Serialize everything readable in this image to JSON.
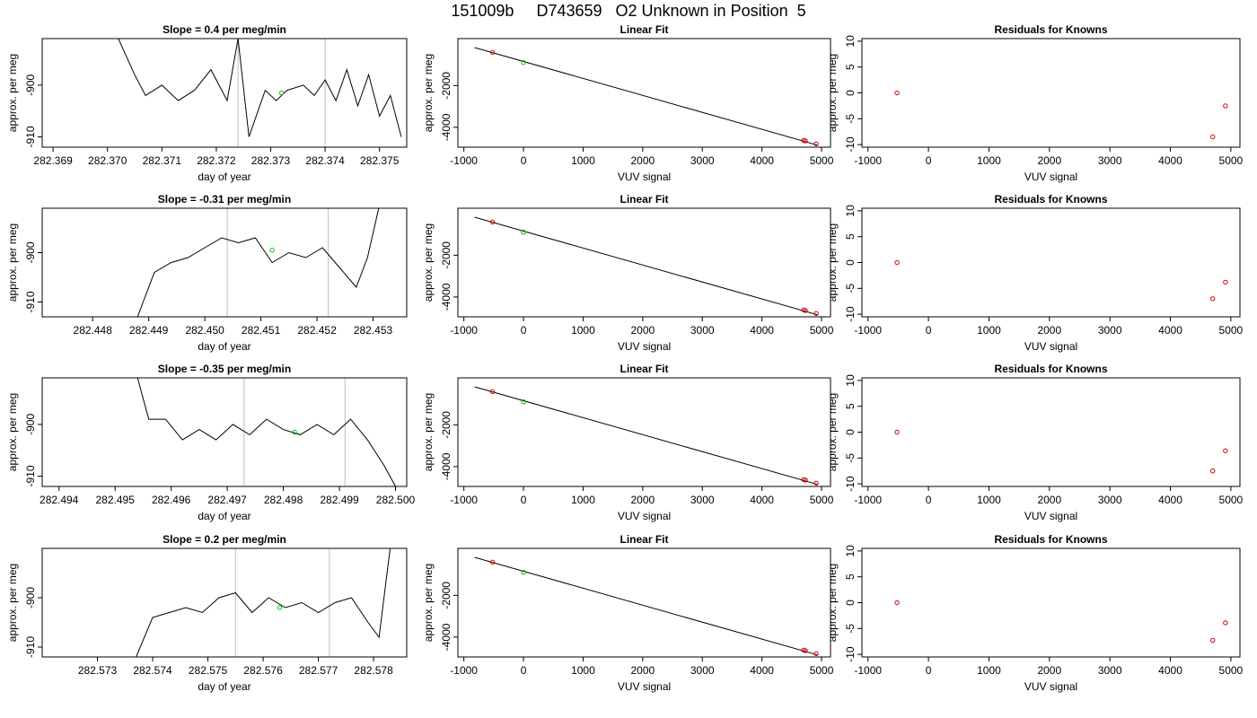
{
  "figure": {
    "title": "151009b     D743659   O2 Unknown in Position  5"
  },
  "colors": {
    "axes": "#000000",
    "trace": "#000000",
    "reference_line": "#c8c8c8",
    "unknown_marker": "#00c000",
    "known_marker": "#d00000"
  },
  "chart_data": [
    {
      "type": "line",
      "row": 0,
      "col": 0,
      "title": "Slope =  0.4  per meg/min",
      "xlabel": "day of year",
      "ylabel": "approx. per meg",
      "xlim": [
        282.3688,
        282.3755
      ],
      "ylim": [
        -912,
        -891
      ],
      "xticks": [
        282.369,
        282.37,
        282.371,
        282.372,
        282.373,
        282.374,
        282.375
      ],
      "xtick_labels": [
        "282.369",
        "282.370",
        "282.371",
        "282.372",
        "282.373",
        "282.374",
        "282.375"
      ],
      "yticks": [
        -900,
        -910
      ],
      "ytick_labels": [
        "-900",
        "-910"
      ],
      "vlines": [
        282.3724,
        282.374
      ],
      "trace_x": [
        282.3702,
        282.3705,
        282.3707,
        282.371,
        282.3713,
        282.3716,
        282.3719,
        282.3722,
        282.3724,
        282.3726,
        282.3729,
        282.3731,
        282.3733,
        282.3736,
        282.3738,
        282.374,
        282.3742,
        282.3744,
        282.3746,
        282.3748,
        282.375,
        282.3752,
        282.3754
      ],
      "trace_y": [
        -891,
        -898,
        -902,
        -900,
        -903,
        -901,
        -897,
        -903,
        -891,
        -910,
        -901,
        -903,
        -901,
        -900,
        -902,
        -899,
        -903,
        -897,
        -904,
        -898,
        -906,
        -902,
        -910
      ],
      "unknown_points": [
        {
          "x": 282.3732,
          "y": -901.5
        }
      ]
    },
    {
      "type": "scatter",
      "row": 0,
      "col": 1,
      "title": "Linear Fit",
      "xlabel": "VUV signal",
      "ylabel": "approx. per meg",
      "xlim": [
        -1100,
        5150
      ],
      "ylim": [
        -4950,
        250
      ],
      "xticks": [
        -1000,
        0,
        1000,
        2000,
        3000,
        4000,
        5000
      ],
      "xtick_labels": [
        "-1000",
        "0",
        "1000",
        "2000",
        "3000",
        "4000",
        "5000"
      ],
      "yticks": [
        -2000,
        -4000
      ],
      "ytick_labels": [
        "-2000",
        "-4000"
      ],
      "fit_line": {
        "x": [
          -820,
          4930
        ],
        "y": [
          -180,
          -4850
        ]
      },
      "known_points": [
        {
          "x": -520,
          "y": -410
        },
        {
          "x": 4700,
          "y": -4620
        },
        {
          "x": 4730,
          "y": -4650
        },
        {
          "x": 4910,
          "y": -4790
        }
      ],
      "unknown_points": [
        {
          "x": 0,
          "y": -900
        }
      ]
    },
    {
      "type": "scatter",
      "row": 0,
      "col": 2,
      "title": "Residuals for Knowns",
      "xlabel": "VUV signal",
      "ylabel": "approx. per meg",
      "xlim": [
        -1100,
        5150
      ],
      "ylim": [
        -10.5,
        10.5
      ],
      "xticks": [
        -1000,
        0,
        1000,
        2000,
        3000,
        4000,
        5000
      ],
      "xtick_labels": [
        "-1000",
        "0",
        "1000",
        "2000",
        "3000",
        "4000",
        "5000"
      ],
      "yticks": [
        10,
        5,
        0,
        -5,
        -10
      ],
      "ytick_labels": [
        "10",
        "5",
        "0",
        "-5",
        "-10"
      ],
      "known_points": [
        {
          "x": -520,
          "y": 0
        },
        {
          "x": 4700,
          "y": -8.5
        },
        {
          "x": 4910,
          "y": -2.5
        }
      ]
    },
    {
      "type": "line",
      "row": 1,
      "col": 0,
      "title": "Slope =  -0.31  per meg/min",
      "xlabel": "day of year",
      "ylabel": "approx. per meg",
      "xlim": [
        282.4471,
        282.4536
      ],
      "ylim": [
        -913,
        -891
      ],
      "xticks": [
        282.448,
        282.449,
        282.45,
        282.451,
        282.452,
        282.453
      ],
      "xtick_labels": [
        "282.448",
        "282.449",
        "282.450",
        "282.451",
        "282.452",
        "282.453"
      ],
      "yticks": [
        -900,
        -910
      ],
      "ytick_labels": [
        "-900",
        "-910"
      ],
      "vlines": [
        282.4504,
        282.4522
      ],
      "trace_x": [
        282.4488,
        282.4491,
        282.4494,
        282.4497,
        282.45,
        282.4503,
        282.4506,
        282.4509,
        282.4512,
        282.4515,
        282.4518,
        282.4521,
        282.4524,
        282.4527,
        282.4529,
        282.4531
      ],
      "trace_y": [
        -913,
        -904,
        -902,
        -901,
        -899,
        -897,
        -898,
        -897,
        -902,
        -900,
        -901,
        -899,
        -903,
        -907,
        -901,
        -891
      ],
      "unknown_points": [
        {
          "x": 282.4512,
          "y": -899.5
        }
      ]
    },
    {
      "type": "scatter",
      "row": 1,
      "col": 1,
      "title": "Linear Fit",
      "xlabel": "VUV signal",
      "ylabel": "approx. per meg",
      "xlim": [
        -1100,
        5150
      ],
      "ylim": [
        -4950,
        250
      ],
      "xticks": [
        -1000,
        0,
        1000,
        2000,
        3000,
        4000,
        5000
      ],
      "xtick_labels": [
        "-1000",
        "0",
        "1000",
        "2000",
        "3000",
        "4000",
        "5000"
      ],
      "yticks": [
        -2000,
        -4000
      ],
      "ytick_labels": [
        "-2000",
        "-4000"
      ],
      "fit_line": {
        "x": [
          -820,
          4930
        ],
        "y": [
          -180,
          -4850
        ]
      },
      "known_points": [
        {
          "x": -520,
          "y": -410
        },
        {
          "x": 4700,
          "y": -4620
        },
        {
          "x": 4730,
          "y": -4650
        },
        {
          "x": 4910,
          "y": -4790
        }
      ],
      "unknown_points": [
        {
          "x": 0,
          "y": -900
        }
      ]
    },
    {
      "type": "scatter",
      "row": 1,
      "col": 2,
      "title": "Residuals for Knowns",
      "xlabel": "VUV signal",
      "ylabel": "approx. per meg",
      "xlim": [
        -1100,
        5150
      ],
      "ylim": [
        -10.5,
        10.5
      ],
      "xticks": [
        -1000,
        0,
        1000,
        2000,
        3000,
        4000,
        5000
      ],
      "xtick_labels": [
        "-1000",
        "0",
        "1000",
        "2000",
        "3000",
        "4000",
        "5000"
      ],
      "yticks": [
        10,
        5,
        0,
        -5,
        -10
      ],
      "ytick_labels": [
        "10",
        "5",
        "0",
        "-5",
        "-10"
      ],
      "known_points": [
        {
          "x": -520,
          "y": 0
        },
        {
          "x": 4700,
          "y": -7
        },
        {
          "x": 4910,
          "y": -3.8
        }
      ]
    },
    {
      "type": "line",
      "row": 2,
      "col": 0,
      "title": "Slope =  -0.35  per meg/min",
      "xlabel": "day of year",
      "ylabel": "approx. per meg",
      "xlim": [
        282.4937,
        282.5002
      ],
      "ylim": [
        -912,
        -891
      ],
      "xticks": [
        282.494,
        282.495,
        282.496,
        282.497,
        282.498,
        282.499,
        282.5
      ],
      "xtick_labels": [
        "282.494",
        "282.495",
        "282.496",
        "282.497",
        "282.498",
        "282.499",
        "282.500"
      ],
      "yticks": [
        -900,
        -910
      ],
      "ytick_labels": [
        "-900",
        "-910"
      ],
      "vlines": [
        282.4973,
        282.4991
      ],
      "trace_x": [
        282.4954,
        282.4956,
        282.4959,
        282.4962,
        282.4965,
        282.4968,
        282.4971,
        282.4974,
        282.4977,
        282.498,
        282.4983,
        282.4986,
        282.4989,
        282.4992,
        282.4995,
        282.4998,
        282.5
      ],
      "trace_y": [
        -891,
        -899,
        -899,
        -903,
        -901,
        -903,
        -900,
        -902,
        -899,
        -901,
        -902,
        -900,
        -902,
        -899,
        -903,
        -908,
        -912
      ],
      "unknown_points": [
        {
          "x": 282.4982,
          "y": -901.5
        }
      ]
    },
    {
      "type": "scatter",
      "row": 2,
      "col": 1,
      "title": "Linear Fit",
      "xlabel": "VUV signal",
      "ylabel": "approx. per meg",
      "xlim": [
        -1100,
        5150
      ],
      "ylim": [
        -4950,
        250
      ],
      "xticks": [
        -1000,
        0,
        1000,
        2000,
        3000,
        4000,
        5000
      ],
      "xtick_labels": [
        "-1000",
        "0",
        "1000",
        "2000",
        "3000",
        "4000",
        "5000"
      ],
      "yticks": [
        -2000,
        -4000
      ],
      "ytick_labels": [
        "-2000",
        "-4000"
      ],
      "fit_line": {
        "x": [
          -820,
          4930
        ],
        "y": [
          -180,
          -4850
        ]
      },
      "known_points": [
        {
          "x": -520,
          "y": -410
        },
        {
          "x": 4700,
          "y": -4620
        },
        {
          "x": 4730,
          "y": -4650
        },
        {
          "x": 4910,
          "y": -4790
        }
      ],
      "unknown_points": [
        {
          "x": 0,
          "y": -900
        }
      ]
    },
    {
      "type": "scatter",
      "row": 2,
      "col": 2,
      "title": "Residuals for Knowns",
      "xlabel": "VUV signal",
      "ylabel": "approx. per meg",
      "xlim": [
        -1100,
        5150
      ],
      "ylim": [
        -10.5,
        10.5
      ],
      "xticks": [
        -1000,
        0,
        1000,
        2000,
        3000,
        4000,
        5000
      ],
      "xtick_labels": [
        "-1000",
        "0",
        "1000",
        "2000",
        "3000",
        "4000",
        "5000"
      ],
      "yticks": [
        10,
        5,
        0,
        -5,
        -10
      ],
      "ytick_labels": [
        "10",
        "5",
        "0",
        "-5",
        "-10"
      ],
      "known_points": [
        {
          "x": -520,
          "y": 0
        },
        {
          "x": 4700,
          "y": -7.5
        },
        {
          "x": 4910,
          "y": -3.6
        }
      ]
    },
    {
      "type": "line",
      "row": 3,
      "col": 0,
      "title": "Slope =  0.2  per meg/min",
      "xlabel": "day of year",
      "ylabel": "approx. per meg",
      "xlim": [
        282.572,
        282.5786
      ],
      "ylim": [
        -912,
        -890
      ],
      "xticks": [
        282.573,
        282.574,
        282.575,
        282.576,
        282.577,
        282.578
      ],
      "xtick_labels": [
        "282.573",
        "282.574",
        "282.575",
        "282.576",
        "282.577",
        "282.578"
      ],
      "yticks": [
        -900,
        -910
      ],
      "ytick_labels": [
        "-900",
        "-910"
      ],
      "vlines": [
        282.5755,
        282.5772
      ],
      "trace_x": [
        282.5737,
        282.574,
        282.5743,
        282.5746,
        282.5749,
        282.5752,
        282.5755,
        282.5758,
        282.5761,
        282.5764,
        282.5767,
        282.577,
        282.5773,
        282.5776,
        282.5779,
        282.5781,
        282.5783
      ],
      "trace_y": [
        -912,
        -904,
        -903,
        -902,
        -903,
        -900,
        -899,
        -903,
        -900,
        -902,
        -901,
        -903,
        -901,
        -900,
        -905,
        -908,
        -890
      ],
      "unknown_points": [
        {
          "x": 282.5763,
          "y": -902
        }
      ]
    },
    {
      "type": "scatter",
      "row": 3,
      "col": 1,
      "title": "Linear Fit",
      "xlabel": "VUV signal",
      "ylabel": "approx. per meg",
      "xlim": [
        -1100,
        5150
      ],
      "ylim": [
        -4950,
        250
      ],
      "xticks": [
        -1000,
        0,
        1000,
        2000,
        3000,
        4000,
        5000
      ],
      "xtick_labels": [
        "-1000",
        "0",
        "1000",
        "2000",
        "3000",
        "4000",
        "5000"
      ],
      "yticks": [
        -2000,
        -4000
      ],
      "ytick_labels": [
        "-2000",
        "-4000"
      ],
      "fit_line": {
        "x": [
          -820,
          4930
        ],
        "y": [
          -180,
          -4850
        ]
      },
      "known_points": [
        {
          "x": -520,
          "y": -410
        },
        {
          "x": 4700,
          "y": -4620
        },
        {
          "x": 4730,
          "y": -4650
        },
        {
          "x": 4910,
          "y": -4790
        }
      ],
      "unknown_points": [
        {
          "x": 0,
          "y": -900
        }
      ]
    },
    {
      "type": "scatter",
      "row": 3,
      "col": 2,
      "title": "Residuals for Knowns",
      "xlabel": "VUV signal",
      "ylabel": "approx. per meg",
      "xlim": [
        -1100,
        5150
      ],
      "ylim": [
        -10.5,
        10.5
      ],
      "xticks": [
        -1000,
        0,
        1000,
        2000,
        3000,
        4000,
        5000
      ],
      "xtick_labels": [
        "-1000",
        "0",
        "1000",
        "2000",
        "3000",
        "4000",
        "5000"
      ],
      "yticks": [
        10,
        5,
        0,
        -5,
        -10
      ],
      "ytick_labels": [
        "10",
        "5",
        "0",
        "-5",
        "-10"
      ],
      "known_points": [
        {
          "x": -520,
          "y": 0
        },
        {
          "x": 4700,
          "y": -7.3
        },
        {
          "x": 4910,
          "y": -3.9
        }
      ]
    }
  ]
}
